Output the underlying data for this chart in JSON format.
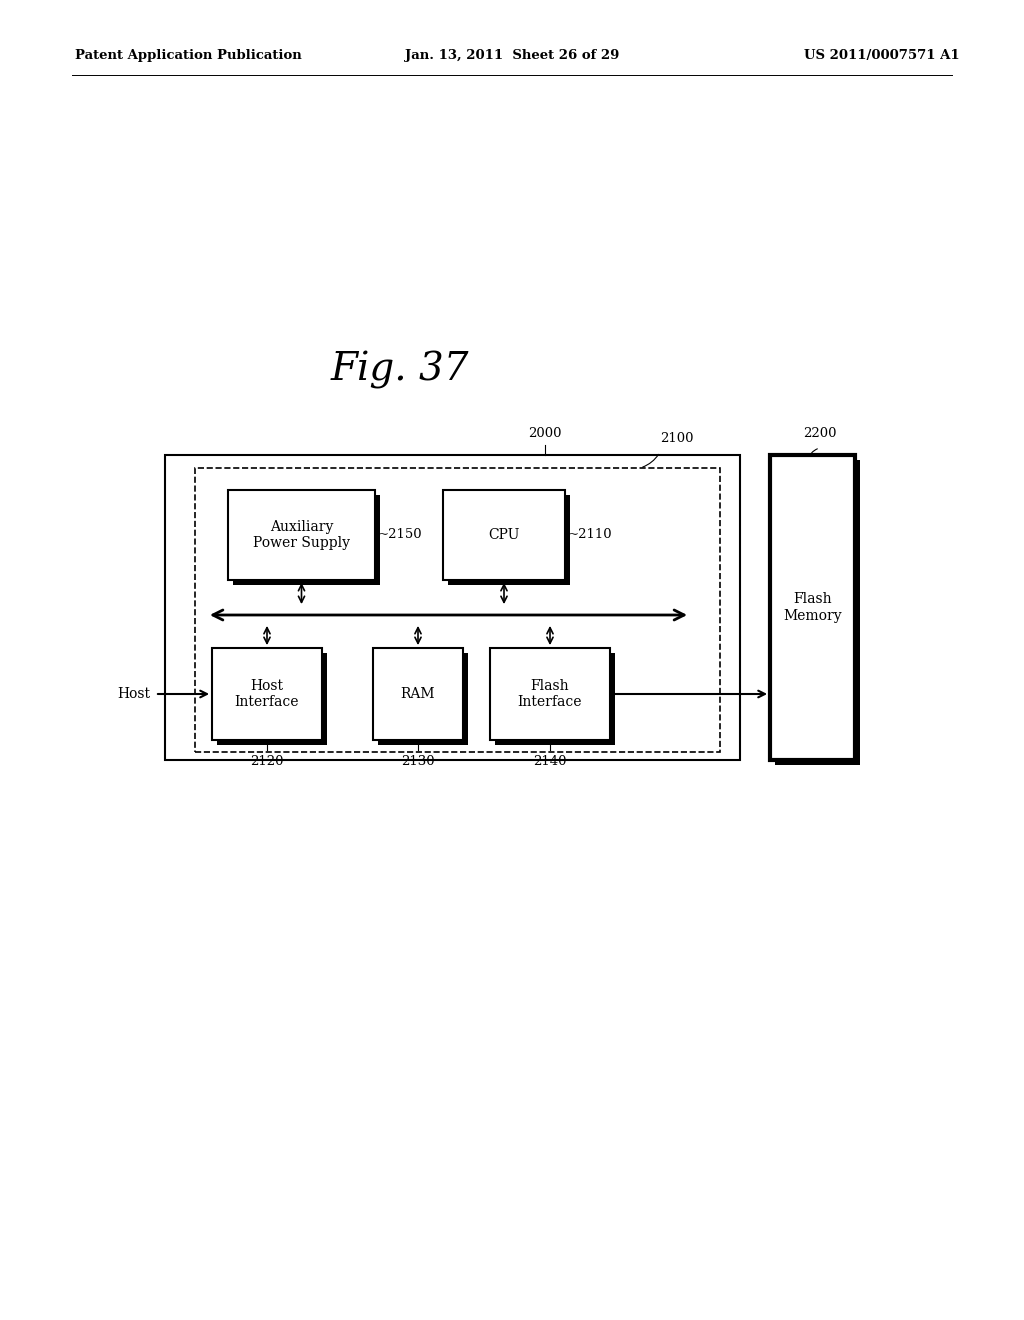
{
  "title": "Fig. 37",
  "header_left": "Patent Application Publication",
  "header_center": "Jan. 13, 2011  Sheet 26 of 29",
  "header_right": "US 2011/0007571 A1",
  "background_color": "#ffffff",
  "label_2000": "2000",
  "label_2100": "2100",
  "label_2200": "2200",
  "label_2150": "~2150",
  "label_2110": "~2110",
  "label_2120": "2120",
  "label_2130": "2130",
  "label_2140": "2140",
  "box_aux_label": "Auxiliary\nPower Supply",
  "box_cpu_label": "CPU",
  "box_host_label": "Host\nInterface",
  "box_ram_label": "RAM",
  "box_flash_label": "Flash\nInterface",
  "box_flash_memory_label": "Flash\nMemory",
  "host_label": "Host"
}
